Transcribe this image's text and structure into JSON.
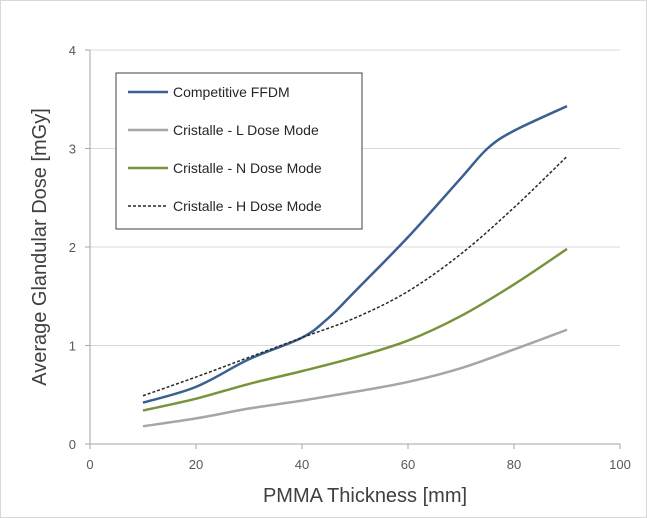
{
  "chart_data": {
    "type": "line",
    "title": "",
    "xlabel": "PMMA Thickness [mm]",
    "ylabel": "Average Glandular Dose [mGy]",
    "xlim": [
      0,
      100
    ],
    "ylim": [
      0,
      4
    ],
    "xticks": [
      0,
      20,
      40,
      60,
      80,
      100
    ],
    "yticks": [
      0,
      1,
      2,
      3,
      4
    ],
    "grid": "horizontal",
    "legend_position": "top-left",
    "series": [
      {
        "name": "Competitive FFDM",
        "color": "#3a5f91",
        "style": "solid",
        "x": [
          10,
          20,
          30,
          40,
          45,
          50,
          60,
          70,
          75,
          80,
          90
        ],
        "y": [
          0.42,
          0.58,
          0.86,
          1.08,
          1.28,
          1.55,
          2.1,
          2.7,
          3.0,
          3.18,
          3.43
        ]
      },
      {
        "name": "Cristalle - L Dose Mode",
        "color": "#a6a6a6",
        "style": "solid",
        "x": [
          10,
          20,
          30,
          40,
          50,
          60,
          70,
          80,
          90
        ],
        "y": [
          0.18,
          0.26,
          0.36,
          0.44,
          0.53,
          0.63,
          0.77,
          0.96,
          1.16
        ]
      },
      {
        "name": "Cristalle - N Dose Mode",
        "color": "#77933c",
        "style": "solid",
        "x": [
          10,
          20,
          30,
          40,
          50,
          60,
          70,
          80,
          90
        ],
        "y": [
          0.34,
          0.46,
          0.61,
          0.74,
          0.88,
          1.05,
          1.3,
          1.62,
          1.98
        ]
      },
      {
        "name": "Cristalle - H Dose Mode",
        "color": "#262626",
        "style": "dotted",
        "x": [
          10,
          20,
          30,
          40,
          50,
          60,
          70,
          80,
          90
        ],
        "y": [
          0.49,
          0.68,
          0.88,
          1.08,
          1.28,
          1.55,
          1.93,
          2.4,
          2.92
        ]
      }
    ]
  }
}
